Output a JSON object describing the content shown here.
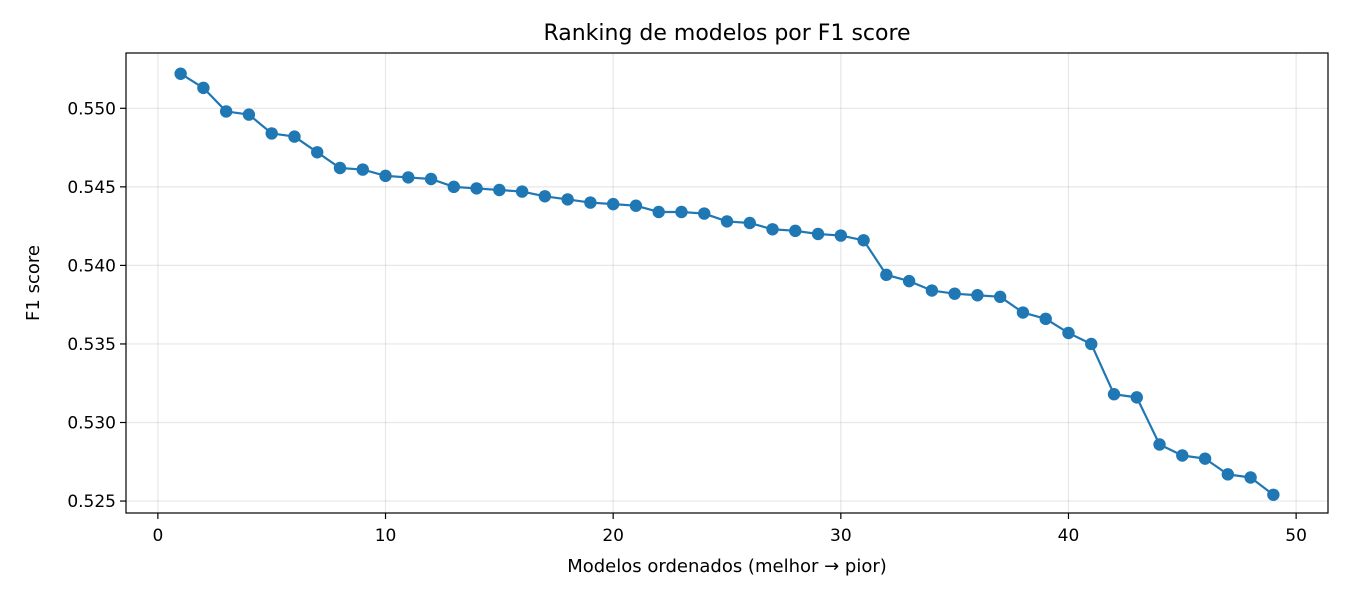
{
  "chart_data": {
    "type": "line",
    "title": "Ranking de modelos por F1 score",
    "xlabel": "Modelos ordenados (melhor → pior)",
    "ylabel": "F1 score",
    "xlim": [
      -1.4,
      51.4
    ],
    "ylim": [
      0.52424,
      0.55352
    ],
    "xticks": [
      0,
      10,
      20,
      30,
      40,
      50
    ],
    "yticks": [
      0.525,
      0.53,
      0.535,
      0.54,
      0.545,
      0.55
    ],
    "xtick_labels": [
      "0",
      "10",
      "20",
      "30",
      "40",
      "50"
    ],
    "ytick_labels": [
      "0.525",
      "0.530",
      "0.535",
      "0.540",
      "0.545",
      "0.550"
    ],
    "grid": true,
    "legend": "none",
    "color": "#1f77b4",
    "series": [
      {
        "x": [
          1,
          2,
          3,
          4,
          5,
          6,
          7,
          8,
          9,
          10,
          11,
          12,
          13,
          14,
          15,
          16,
          17,
          18,
          19,
          20,
          21,
          22,
          23,
          24,
          25,
          26,
          27,
          28,
          29,
          30,
          31,
          32,
          33,
          34,
          35,
          36,
          37,
          38,
          39,
          40,
          41,
          42,
          43,
          44,
          45,
          46,
          47,
          48,
          49
        ],
        "values": [
          0.5522,
          0.5513,
          0.5498,
          0.5496,
          0.5484,
          0.5482,
          0.5472,
          0.5462,
          0.5461,
          0.5457,
          0.5456,
          0.5455,
          0.545,
          0.5449,
          0.5448,
          0.5447,
          0.5444,
          0.5442,
          0.544,
          0.5439,
          0.5438,
          0.5434,
          0.5434,
          0.5433,
          0.5428,
          0.5427,
          0.5423,
          0.5422,
          0.542,
          0.5419,
          0.5416,
          0.5394,
          0.539,
          0.5384,
          0.5382,
          0.5381,
          0.538,
          0.537,
          0.5366,
          0.5357,
          0.535,
          0.5318,
          0.5316,
          0.5286,
          0.5279,
          0.5277,
          0.5267,
          0.5265,
          0.5254
        ]
      }
    ]
  }
}
